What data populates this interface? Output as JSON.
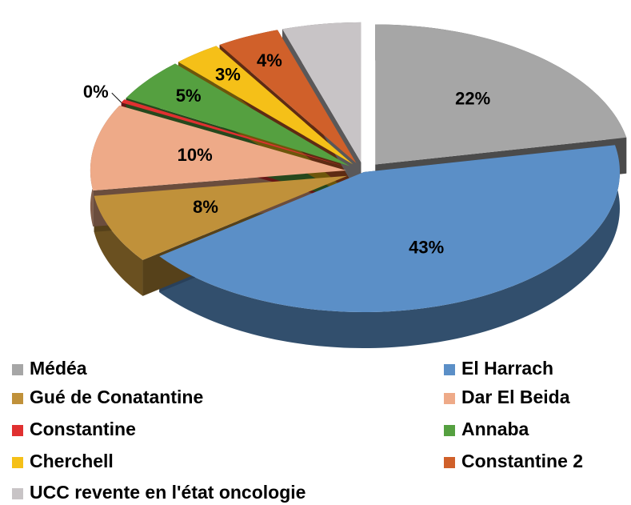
{
  "chart_data": {
    "type": "pie",
    "categories": [
      "Médéa",
      "El Harrach",
      "Gué de Conatantine",
      "Dar El Beida",
      "Constantine",
      "Annaba",
      "Cherchell",
      "Constantine 2",
      "UCC revente en l'état oncologie"
    ],
    "values": [
      22,
      43,
      8,
      10,
      0.4,
      5,
      3,
      4,
      5
    ],
    "value_labels": [
      "22%",
      "43%",
      "8%",
      "10%",
      "0%",
      "5%",
      "3%",
      "4%",
      null
    ],
    "colors": [
      "#a6a6a6",
      "#5b8fc7",
      "#c0913a",
      "#eeaa88",
      "#e03030",
      "#55a040",
      "#f5c018",
      "#d0602a",
      "#c8c4c6"
    ]
  }
}
